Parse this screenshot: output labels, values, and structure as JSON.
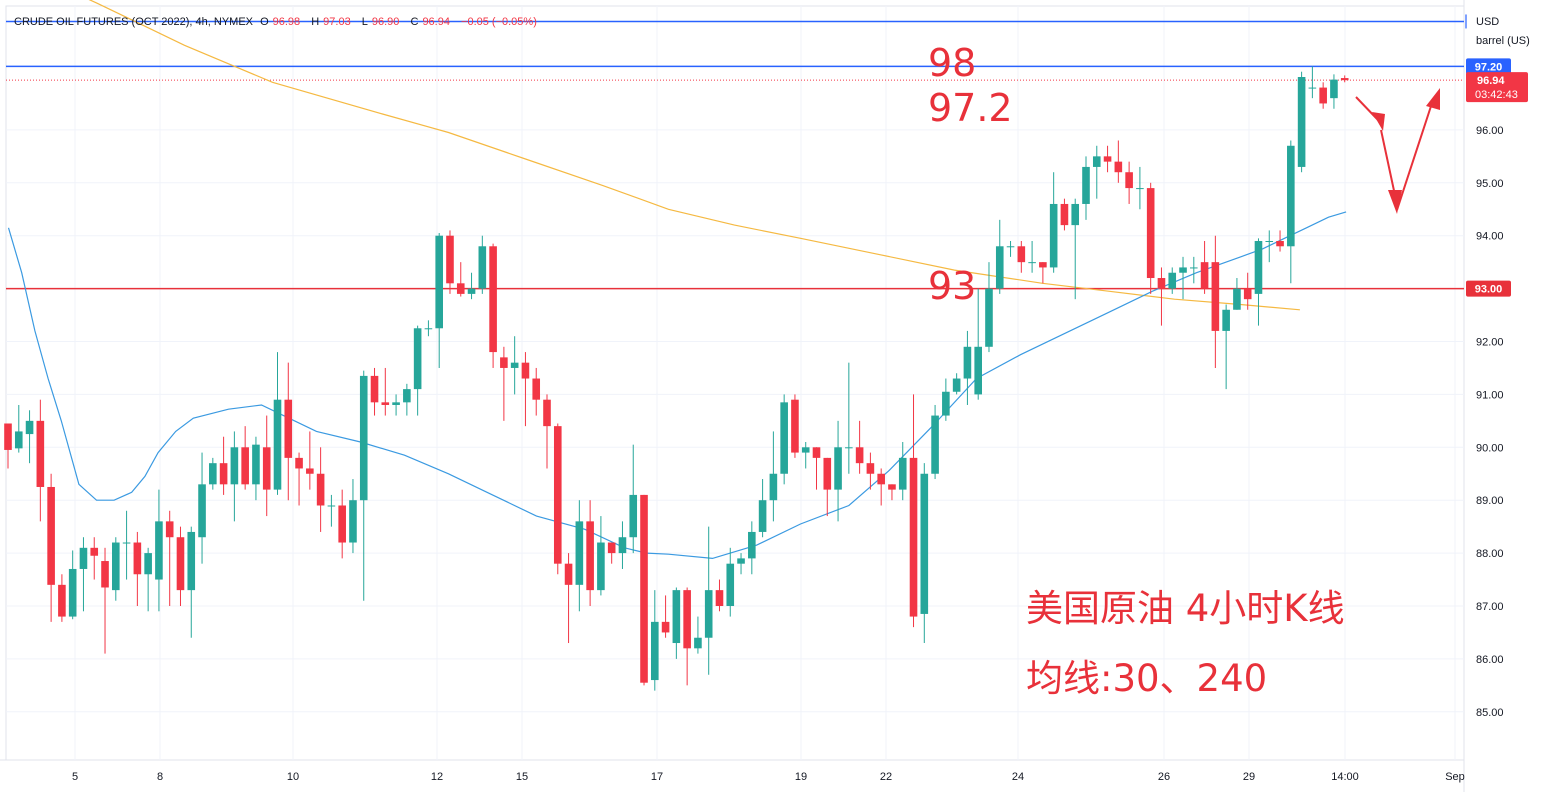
{
  "header": {
    "symbol": "CRUDE OIL FUTURES (OCT 2022), 4h, NYMEX",
    "o_label": "O",
    "o_value": "96.98",
    "h_label": "H",
    "h_value": "97.03",
    "l_label": "L",
    "l_value": "96.90",
    "c_label": "C",
    "c_value": "96.94",
    "change": "−0.05 (−0.05%)"
  },
  "axis_unit": [
    "USD",
    "barrel (US)"
  ],
  "annotations": {
    "level_98": "98",
    "level_972": "97.2",
    "level_93": "93",
    "title_line1": "美国原油 4小时K线",
    "title_line2": "均线:30、240"
  },
  "colors": {
    "up": "#26a69a",
    "down": "#f23645",
    "ma30": "#3b9ae1",
    "ma240": "#f5b942",
    "hline_blue": "#2962ff",
    "hline_red": "#e8313a",
    "arrow": "#e8313a"
  },
  "chart_data": {
    "type": "candlestick",
    "interval": "4h",
    "y_range": [
      84.6,
      99.5
    ],
    "y_ticks": [
      "85.00",
      "86.00",
      "87.00",
      "88.00",
      "89.00",
      "90.00",
      "91.00",
      "92.00",
      "93.00",
      "94.00",
      "95.00",
      "96.00"
    ],
    "x_ticks": [
      "5",
      "8",
      "10",
      "12",
      "15",
      "17",
      "19",
      "22",
      "24",
      "26",
      "29",
      "14:00",
      "Sep"
    ],
    "horizontal_lines": [
      {
        "value": 97.2,
        "label": "97.20",
        "color": "#2962ff"
      },
      {
        "value": 93.0,
        "label": "93.00",
        "color": "#e8313a"
      },
      {
        "value": 98.05,
        "label": "",
        "color": "#2962ff"
      }
    ],
    "price_label": {
      "value": "96.94",
      "countdown": "03:42:43"
    },
    "candles": [
      [
        90.45,
        89.95,
        90.45,
        89.6
      ],
      [
        89.98,
        90.3,
        90.8,
        89.9
      ],
      [
        90.25,
        90.5,
        90.7,
        89.7
      ],
      [
        90.5,
        89.25,
        90.9,
        88.6
      ],
      [
        89.25,
        87.4,
        89.5,
        86.7
      ],
      [
        87.4,
        86.8,
        87.6,
        86.7
      ],
      [
        86.8,
        87.7,
        88.05,
        86.75
      ],
      [
        87.7,
        88.1,
        88.3,
        86.9
      ],
      [
        88.1,
        87.95,
        88.3,
        87.5
      ],
      [
        87.85,
        87.35,
        88.1,
        86.1
      ],
      [
        87.3,
        88.2,
        88.3,
        87.1
      ],
      [
        88.2,
        88.2,
        88.8,
        87.5
      ],
      [
        88.2,
        87.6,
        88.4,
        87.0
      ],
      [
        87.6,
        88.0,
        88.1,
        86.9
      ],
      [
        87.5,
        88.6,
        89.2,
        86.9
      ],
      [
        88.6,
        88.3,
        88.8,
        87.0
      ],
      [
        88.3,
        87.3,
        88.5,
        87.0
      ],
      [
        87.3,
        88.4,
        88.5,
        86.4
      ],
      [
        88.3,
        89.3,
        89.9,
        87.8
      ],
      [
        89.3,
        89.7,
        89.8,
        89.2
      ],
      [
        89.7,
        89.3,
        90.2,
        89.1
      ],
      [
        89.3,
        90.0,
        90.3,
        88.6
      ],
      [
        90.0,
        89.3,
        90.4,
        89.2
      ],
      [
        89.3,
        90.05,
        90.2,
        89.0
      ],
      [
        90.0,
        89.2,
        90.6,
        88.7
      ],
      [
        89.2,
        90.9,
        91.8,
        89.1
      ],
      [
        90.9,
        89.8,
        91.6,
        89.0
      ],
      [
        89.8,
        89.6,
        89.9,
        88.9
      ],
      [
        89.6,
        89.5,
        90.3,
        89.2
      ],
      [
        89.5,
        88.9,
        90.0,
        88.4
      ],
      [
        88.9,
        88.9,
        89.1,
        88.5
      ],
      [
        88.9,
        88.2,
        89.2,
        87.9
      ],
      [
        88.2,
        89.0,
        89.4,
        88.0
      ],
      [
        89.0,
        91.35,
        91.45,
        87.1
      ],
      [
        91.35,
        90.85,
        91.5,
        90.6
      ],
      [
        90.85,
        90.8,
        91.5,
        90.6
      ],
      [
        90.8,
        90.85,
        91.0,
        90.6
      ],
      [
        90.85,
        91.1,
        91.2,
        90.6
      ],
      [
        91.1,
        92.25,
        92.3,
        90.6
      ],
      [
        92.25,
        92.25,
        92.4,
        92.1
      ],
      [
        92.25,
        94.0,
        94.05,
        91.5
      ],
      [
        94.0,
        93.1,
        94.1,
        92.9
      ],
      [
        93.1,
        92.9,
        93.5,
        92.85
      ],
      [
        92.9,
        93.0,
        93.3,
        92.8
      ],
      [
        93.0,
        93.8,
        94.0,
        92.9
      ],
      [
        93.8,
        91.8,
        93.85,
        91.5
      ],
      [
        91.7,
        91.5,
        91.9,
        90.5
      ],
      [
        91.5,
        91.6,
        92.1,
        91.0
      ],
      [
        91.6,
        91.3,
        91.8,
        90.4
      ],
      [
        91.3,
        90.9,
        91.5,
        90.6
      ],
      [
        90.9,
        90.4,
        91.0,
        89.6
      ],
      [
        90.4,
        87.8,
        90.45,
        87.6
      ],
      [
        87.8,
        87.4,
        88.0,
        86.3
      ],
      [
        87.4,
        88.6,
        89.0,
        86.9
      ],
      [
        88.6,
        87.3,
        89.0,
        87.0
      ],
      [
        87.3,
        88.2,
        88.7,
        87.2
      ],
      [
        88.2,
        88.0,
        88.2,
        87.8
      ],
      [
        88.0,
        88.3,
        88.6,
        87.7
      ],
      [
        88.3,
        89.1,
        90.05,
        88.0
      ],
      [
        89.1,
        85.55,
        89.1,
        85.5
      ],
      [
        85.6,
        86.7,
        87.3,
        85.4
      ],
      [
        86.7,
        86.5,
        87.2,
        86.4
      ],
      [
        86.3,
        87.3,
        87.35,
        86.0
      ],
      [
        87.3,
        86.2,
        87.35,
        85.5
      ],
      [
        86.2,
        86.4,
        86.8,
        86.1
      ],
      [
        86.4,
        87.3,
        88.5,
        85.7
      ],
      [
        87.3,
        87.0,
        87.5,
        86.9
      ],
      [
        87.0,
        87.8,
        88.1,
        86.8
      ],
      [
        87.8,
        87.9,
        88.0,
        87.6
      ],
      [
        87.9,
        88.4,
        88.6,
        87.6
      ],
      [
        88.4,
        89.0,
        89.4,
        88.3
      ],
      [
        89.0,
        89.5,
        90.3,
        88.6
      ],
      [
        89.5,
        90.85,
        91.0,
        89.3
      ],
      [
        90.9,
        89.9,
        91.0,
        89.8
      ],
      [
        89.9,
        90.0,
        90.1,
        89.6
      ],
      [
        90.0,
        89.8,
        90.0,
        89.2
      ],
      [
        89.8,
        89.2,
        89.8,
        88.7
      ],
      [
        89.2,
        90.0,
        90.5,
        88.6
      ],
      [
        90.0,
        90.0,
        91.6,
        89.5
      ],
      [
        90.0,
        89.7,
        90.5,
        89.5
      ],
      [
        89.7,
        89.5,
        89.9,
        89.2
      ],
      [
        89.5,
        89.3,
        89.6,
        88.9
      ],
      [
        89.3,
        89.2,
        89.3,
        89.0
      ],
      [
        89.2,
        89.8,
        90.1,
        89.0
      ],
      [
        89.8,
        86.8,
        91.0,
        86.6
      ],
      [
        86.85,
        89.5,
        89.7,
        86.3
      ],
      [
        89.5,
        90.6,
        90.8,
        89.4
      ],
      [
        90.6,
        91.05,
        91.3,
        90.5
      ],
      [
        91.05,
        91.3,
        91.4,
        91.0
      ],
      [
        91.3,
        91.9,
        92.2,
        90.8
      ],
      [
        91.0,
        91.9,
        93.0,
        90.9
      ],
      [
        91.9,
        93.0,
        93.5,
        91.8
      ],
      [
        93.0,
        93.8,
        94.3,
        92.9
      ],
      [
        93.8,
        93.8,
        93.9,
        93.6
      ],
      [
        93.8,
        93.5,
        93.9,
        93.3
      ],
      [
        93.5,
        93.5,
        93.9,
        93.3
      ],
      [
        93.5,
        93.4,
        93.5,
        93.1
      ],
      [
        93.4,
        94.6,
        95.2,
        93.3
      ],
      [
        94.6,
        94.2,
        94.7,
        94.1
      ],
      [
        94.2,
        94.6,
        94.7,
        92.8
      ],
      [
        94.6,
        95.3,
        95.5,
        94.3
      ],
      [
        95.3,
        95.5,
        95.7,
        94.7
      ],
      [
        95.5,
        95.4,
        95.7,
        95.2
      ],
      [
        95.4,
        95.2,
        95.8,
        95.0
      ],
      [
        95.2,
        94.9,
        95.4,
        94.6
      ],
      [
        94.9,
        94.9,
        95.3,
        94.5
      ],
      [
        94.9,
        93.2,
        95.0,
        92.9
      ],
      [
        93.2,
        93.0,
        93.4,
        92.3
      ],
      [
        93.0,
        93.3,
        93.4,
        92.9
      ],
      [
        93.3,
        93.4,
        93.6,
        92.8
      ],
      [
        93.4,
        93.4,
        93.6,
        93.1
      ],
      [
        93.5,
        93.0,
        93.9,
        92.9
      ],
      [
        93.5,
        92.2,
        94.0,
        91.5
      ],
      [
        92.2,
        92.6,
        92.7,
        91.1
      ],
      [
        92.6,
        93.0,
        93.2,
        92.6
      ],
      [
        93.0,
        92.8,
        93.3,
        92.6
      ],
      [
        92.9,
        93.9,
        93.95,
        92.3
      ],
      [
        93.9,
        93.9,
        94.1,
        93.5
      ],
      [
        93.9,
        93.8,
        94.1,
        93.7
      ],
      [
        93.8,
        95.7,
        95.8,
        93.1
      ],
      [
        95.3,
        97.0,
        97.1,
        95.2
      ],
      [
        96.8,
        96.8,
        97.2,
        96.6
      ],
      [
        96.8,
        96.5,
        96.9,
        96.4
      ],
      [
        96.6,
        96.95,
        97.05,
        96.4
      ],
      [
        96.98,
        96.94,
        97.03,
        96.9
      ]
    ],
    "ma30": [
      [
        0,
        94.15
      ],
      [
        6,
        93.3
      ],
      [
        12,
        92.2
      ],
      [
        18,
        91.3
      ],
      [
        24,
        90.5
      ],
      [
        32,
        89.3
      ],
      [
        40,
        89.0
      ],
      [
        48,
        89.0
      ],
      [
        56,
        89.15
      ],
      [
        62,
        89.45
      ],
      [
        68,
        89.9
      ],
      [
        76,
        90.3
      ],
      [
        84,
        90.55
      ],
      [
        100,
        90.72
      ],
      [
        115,
        90.8
      ],
      [
        125,
        90.6
      ],
      [
        140,
        90.3
      ],
      [
        160,
        90.1
      ],
      [
        180,
        89.85
      ],
      [
        200,
        89.5
      ],
      [
        220,
        89.1
      ],
      [
        240,
        88.7
      ],
      [
        262,
        88.45
      ],
      [
        280,
        88.1
      ],
      [
        290,
        88.0
      ],
      [
        300,
        87.98
      ],
      [
        320,
        87.9
      ],
      [
        340,
        88.15
      ],
      [
        360,
        88.55
      ],
      [
        382,
        88.9
      ],
      [
        400,
        89.55
      ],
      [
        420,
        90.4
      ],
      [
        440,
        91.3
      ],
      [
        460,
        91.75
      ],
      [
        480,
        92.15
      ],
      [
        500,
        92.55
      ],
      [
        520,
        92.95
      ],
      [
        540,
        93.3
      ],
      [
        560,
        93.6
      ],
      [
        570,
        93.75
      ],
      [
        580,
        93.95
      ],
      [
        590,
        94.15
      ],
      [
        600,
        94.35
      ],
      [
        608,
        94.45
      ]
    ],
    "ma240": [
      [
        0,
        99.2
      ],
      [
        8,
        99.0
      ],
      [
        40,
        98.4
      ],
      [
        80,
        97.6
      ],
      [
        120,
        96.9
      ],
      [
        170,
        96.3
      ],
      [
        200,
        95.95
      ],
      [
        235,
        95.45
      ],
      [
        270,
        94.95
      ],
      [
        300,
        94.5
      ],
      [
        330,
        94.2
      ],
      [
        360,
        93.95
      ],
      [
        395,
        93.65
      ],
      [
        430,
        93.35
      ],
      [
        470,
        93.1
      ],
      [
        500,
        92.95
      ],
      [
        530,
        92.8
      ],
      [
        560,
        92.7
      ],
      [
        587,
        92.6
      ]
    ]
  }
}
